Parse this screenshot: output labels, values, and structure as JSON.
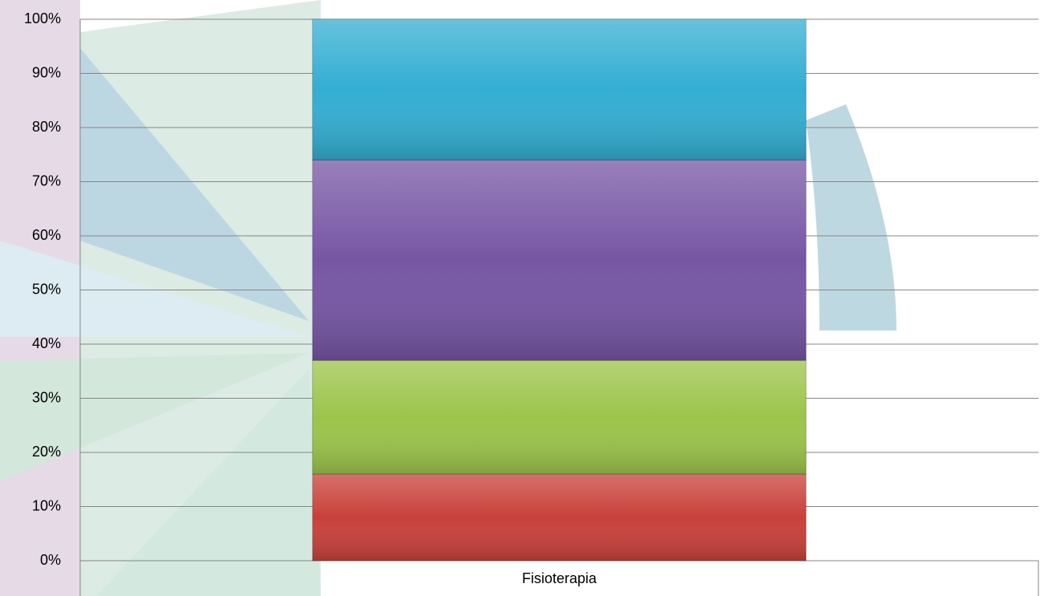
{
  "chart_data": {
    "type": "stacked-bar",
    "categories": [
      "Fisioterapia"
    ],
    "series": [
      {
        "color": "#c8403a",
        "values": [
          16
        ]
      },
      {
        "color": "#9cc44a",
        "values": [
          21
        ]
      },
      {
        "color": "#7656a4",
        "values": [
          37
        ]
      },
      {
        "color": "#33aed2",
        "values": [
          26
        ]
      }
    ],
    "ylim": [
      0,
      100
    ],
    "yticks": [
      {
        "value": 0,
        "label": "0%"
      },
      {
        "value": 10,
        "label": "10%"
      },
      {
        "value": 20,
        "label": "20%"
      },
      {
        "value": 30,
        "label": "30%"
      },
      {
        "value": 40,
        "label": "40%"
      },
      {
        "value": 50,
        "label": "50%"
      },
      {
        "value": 60,
        "label": "60%"
      },
      {
        "value": 70,
        "label": "70%"
      },
      {
        "value": 80,
        "label": "80%"
      },
      {
        "value": 90,
        "label": "90%"
      },
      {
        "value": 100,
        "label": "100%"
      }
    ],
    "grid": true
  }
}
